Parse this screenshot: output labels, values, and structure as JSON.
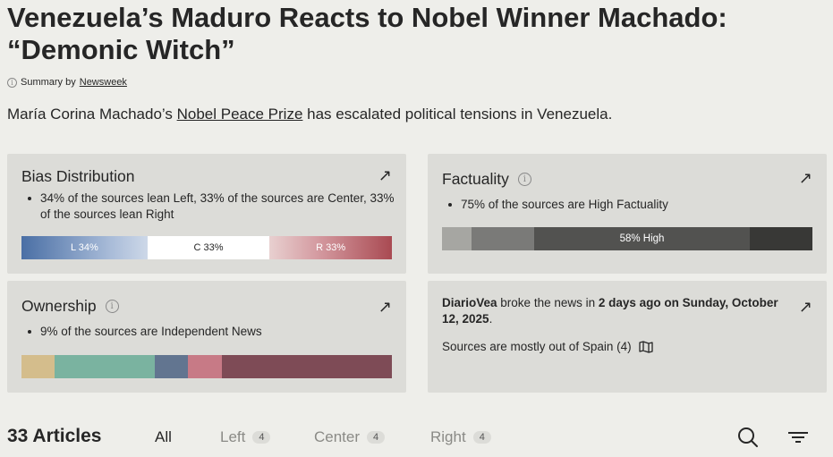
{
  "headline": "Venezuela’s Maduro Reacts to Nobel Winner Machado: “Demonic Witch”",
  "summary": {
    "prefix": "Summary by",
    "source": "Newsweek"
  },
  "lede": {
    "before": "María Corina Machado’s ",
    "link": "Nobel Peace Prize",
    "after": " has escalated political tensions in Venezuela."
  },
  "bias": {
    "title": "Bias Distribution",
    "bullet": "34% of the sources lean Left, 33% of the sources are Center, 33% of the sources lean Right",
    "segments": [
      {
        "label": "L 34%",
        "value": 34
      },
      {
        "label": "C 33%",
        "value": 33
      },
      {
        "label": "R 33%",
        "value": 33
      }
    ]
  },
  "factuality": {
    "title": "Factuality",
    "bullet": "75% of the sources are High Factuality",
    "bar_label": "58% High",
    "segments": [
      {
        "value": 8,
        "color": "#a6a6a2"
      },
      {
        "value": 17,
        "color": "#7a7a78"
      },
      {
        "value": 58,
        "color": "#525250"
      },
      {
        "value": 17,
        "color": "#383836"
      }
    ]
  },
  "ownership": {
    "title": "Ownership",
    "bullet": "9% of the sources are Independent News",
    "segments": [
      {
        "value": 9,
        "color": "#d4bd8c"
      },
      {
        "value": 27,
        "color": "#7ab3a0"
      },
      {
        "value": 9,
        "color": "#627590"
      },
      {
        "value": 9,
        "color": "#c77a86"
      },
      {
        "value": 46,
        "color": "#7e4b56"
      }
    ]
  },
  "news": {
    "source": "DiarioVea",
    "middle": " broke the news in ",
    "when": "2 days ago on Sunday, October 12, 2025",
    "end": ".",
    "origin": "Sources are mostly out of Spain (4)"
  },
  "articles": {
    "count_label": "33 Articles",
    "tabs": [
      {
        "label": "All",
        "count": ""
      },
      {
        "label": "Left",
        "count": "4"
      },
      {
        "label": "Center",
        "count": "4"
      },
      {
        "label": "Right",
        "count": "4"
      }
    ]
  }
}
